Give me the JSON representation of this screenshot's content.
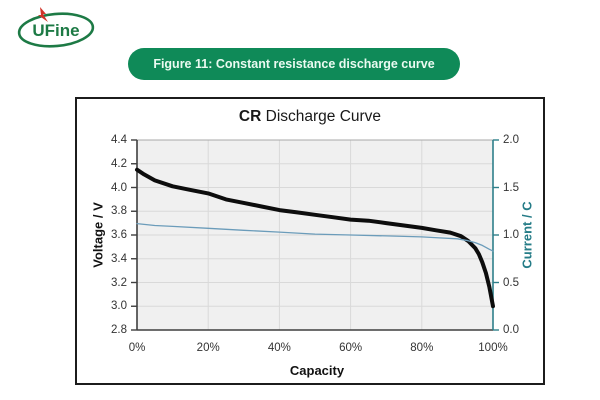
{
  "logo": {
    "text": "UFine"
  },
  "figure_badge": {
    "label": "Figure 11: Constant resistance discharge curve"
  },
  "chart": {
    "title_bold": "CR",
    "title_rest": " Discharge Curve",
    "x_axis": {
      "label": "Capacity",
      "ticks": [
        "0%",
        "20%",
        "40%",
        "60%",
        "80%",
        "100%"
      ]
    },
    "y_axis_left": {
      "label": "Voltage / V",
      "ticks": [
        "4.4",
        "4.2",
        "4.0",
        "3.8",
        "3.6",
        "3.4",
        "3.2",
        "3.0",
        "2.8"
      ]
    },
    "y_axis_right": {
      "label": "Current / C",
      "ticks": [
        "2.0",
        "1.5",
        "1.0",
        "0.5",
        "0.0"
      ]
    }
  },
  "chart_data": {
    "type": "line",
    "title": "CR Discharge Curve",
    "xlabel": "Capacity",
    "x_unit": "%",
    "xlim": [
      0,
      100
    ],
    "x_tick_step": 20,
    "ylabel_left": "Voltage / V",
    "ylim_left": [
      2.8,
      4.4
    ],
    "ylabel_right": "Current / C",
    "ylim_right": [
      0.0,
      2.0
    ],
    "grid": true,
    "legend": "none",
    "series": [
      {
        "name": "Voltage",
        "axis": "left",
        "color": "#0d0d0d",
        "x": [
          0,
          2,
          5,
          10,
          15,
          20,
          25,
          30,
          35,
          40,
          45,
          50,
          55,
          60,
          65,
          70,
          75,
          80,
          84,
          88,
          91,
          93,
          95,
          96,
          97,
          98,
          99,
          100
        ],
        "y": [
          4.15,
          4.11,
          4.06,
          4.01,
          3.98,
          3.95,
          3.9,
          3.87,
          3.84,
          3.81,
          3.79,
          3.77,
          3.75,
          3.73,
          3.72,
          3.7,
          3.68,
          3.66,
          3.64,
          3.62,
          3.59,
          3.55,
          3.49,
          3.44,
          3.37,
          3.28,
          3.16,
          3.0
        ]
      },
      {
        "name": "Current",
        "axis": "right",
        "color": "#6b9cba",
        "x": [
          0,
          5,
          10,
          20,
          30,
          40,
          50,
          60,
          70,
          80,
          85,
          90,
          93,
          95,
          97,
          99,
          100
        ],
        "y": [
          1.12,
          1.1,
          1.09,
          1.07,
          1.05,
          1.03,
          1.01,
          1.0,
          0.99,
          0.98,
          0.97,
          0.96,
          0.94,
          0.92,
          0.89,
          0.85,
          0.83
        ]
      }
    ]
  },
  "colors": {
    "badge_green": "#0f8a58",
    "logo_green": "#1d7a45",
    "bolt_red": "#d1342a",
    "plot_bg": "#f0f0f0",
    "grid_line": "#d9d9d9",
    "frame": "#a9a9a9",
    "spine": "#3f3f3f",
    "right_spine": "#2e7f8a",
    "tick_text": "#333333"
  }
}
